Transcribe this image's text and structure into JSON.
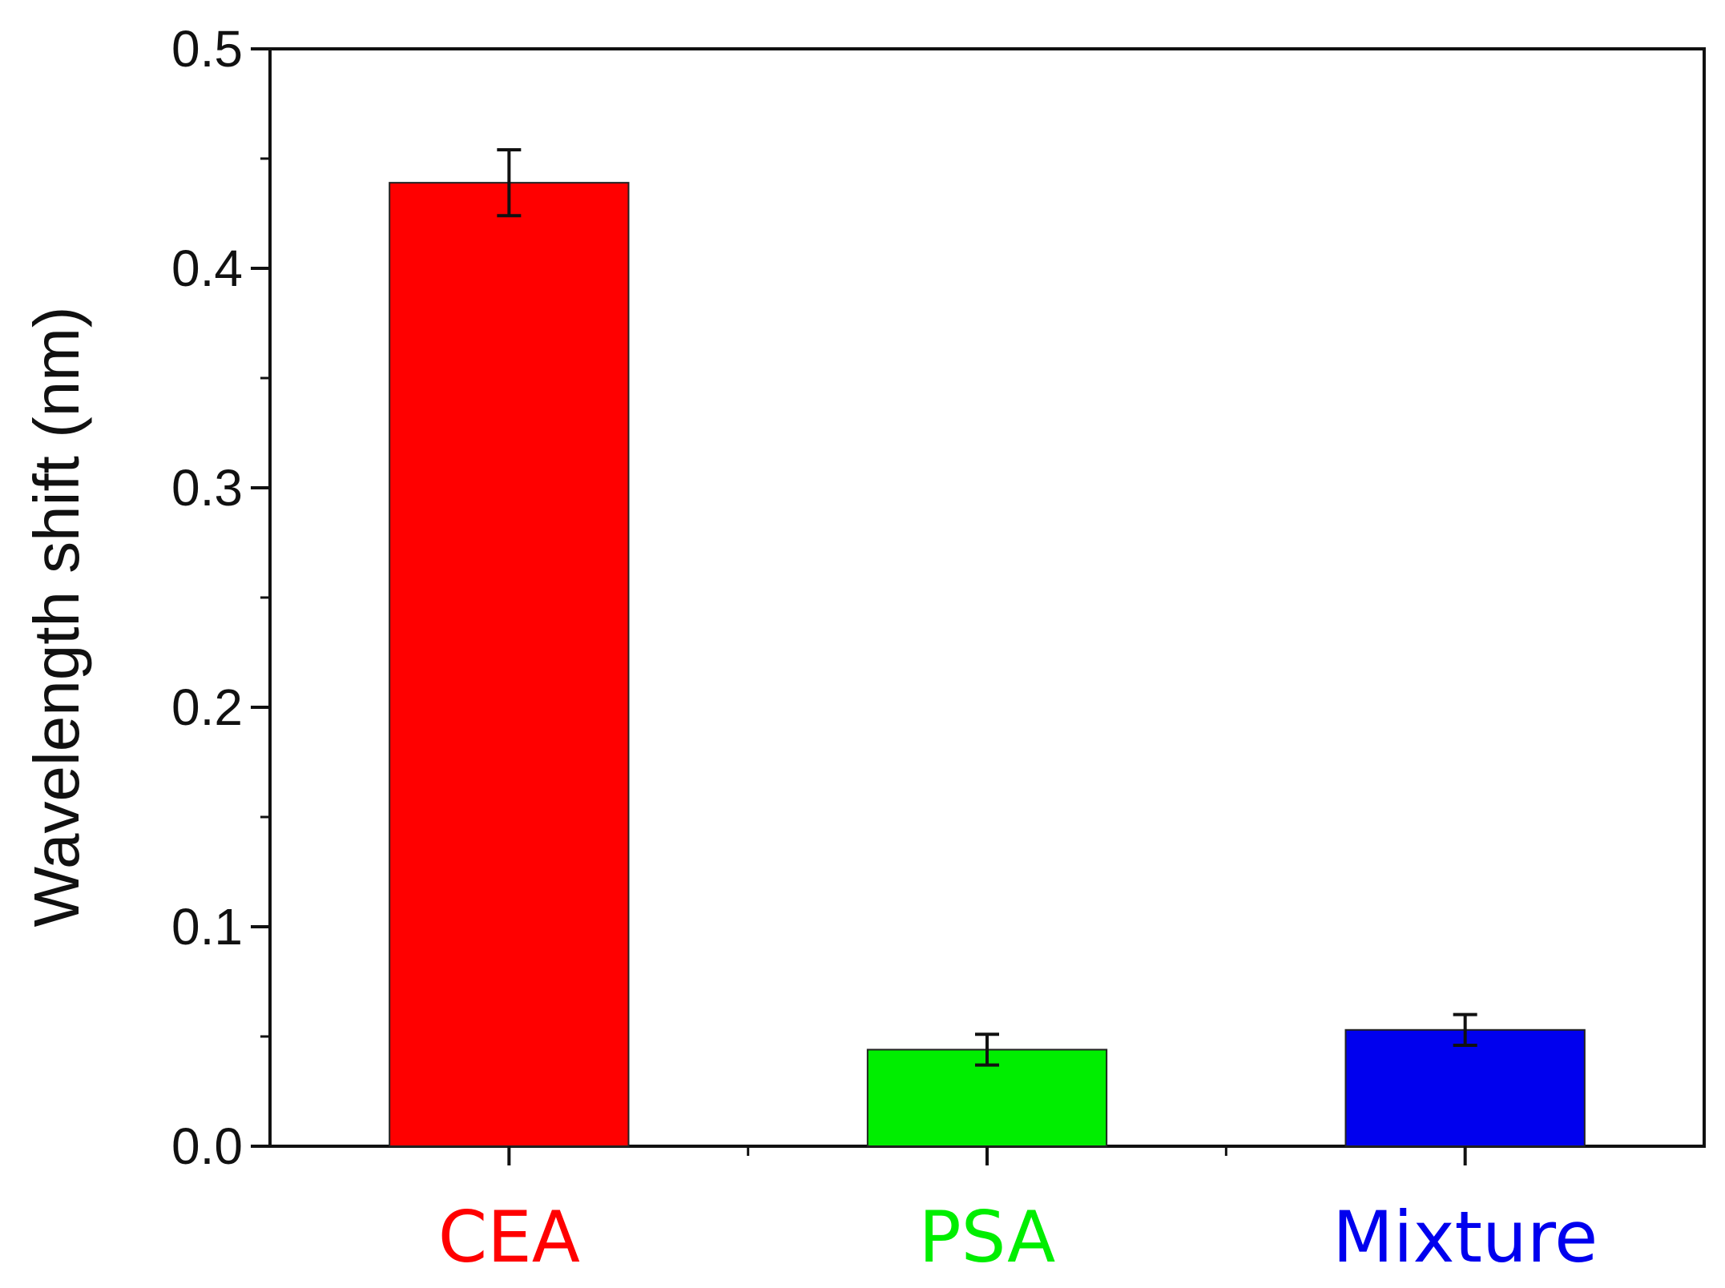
{
  "chart_data": {
    "type": "bar",
    "title": "",
    "xlabel": "",
    "ylabel": "Wavelength shift (nm)",
    "ylim": [
      0.0,
      0.5
    ],
    "yticks": [
      "0.0",
      "0.1",
      "0.2",
      "0.3",
      "0.4",
      "0.5"
    ],
    "grid": false,
    "categories": [
      "CEA",
      "PSA",
      "Mixture"
    ],
    "values": [
      0.439,
      0.044,
      0.053
    ],
    "errors": [
      0.015,
      0.007,
      0.007
    ],
    "colors": [
      "#ff0000",
      "#00ee00",
      "#0000ee"
    ]
  }
}
